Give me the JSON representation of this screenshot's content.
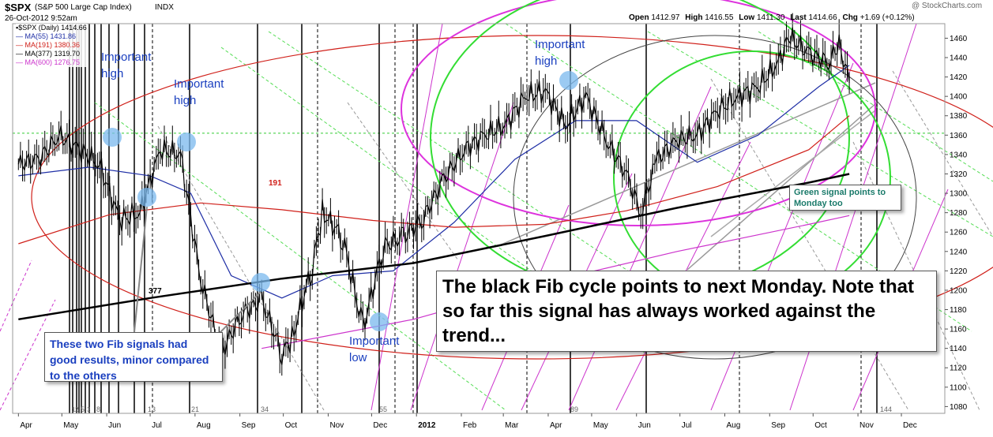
{
  "header": {
    "symbol": "$SPX",
    "name": "(S&P 500 Large Cap Index)",
    "exchange": "INDX",
    "date": "26-Oct-2012 9:52am",
    "watermark": "@ StockCharts.com",
    "ohlc": [
      {
        "label": "Open",
        "value": "1412.97"
      },
      {
        "label": "High",
        "value": "1416.55"
      },
      {
        "label": "Low",
        "value": "1411.30"
      },
      {
        "label": "Last",
        "value": "1414.66"
      },
      {
        "label": "Chg",
        "value": "+1.69 (+0.12%)"
      }
    ]
  },
  "legend": [
    {
      "text": "▪$SPX (Daily) 1414.66",
      "color": "#000000"
    },
    {
      "text": "— MA(55) 1431.86",
      "color": "#1f2fa6"
    },
    {
      "text": "— MA(191) 1380.36",
      "color": "#d0201a"
    },
    {
      "text": "— MA(377) 1319.70",
      "color": "#000000"
    },
    {
      "text": "— MA(600) 1276.75",
      "color": "#cc33cc"
    }
  ],
  "annotations": {
    "important_high_1": "Important high",
    "important_high_2": "Important high",
    "important_high_3": "Important high",
    "important_low": "Important low",
    "fib_two": "These two Fib signals had good results, minor compared to the others",
    "black_fib": "The black Fib cycle points to next Monday. Note that so far this signal has always worked against the trend...",
    "green_signal": "Green signal points to Monday too",
    "ma_191_label": "191",
    "ma_377_label": "377"
  },
  "cycle_numbers": [
    "5",
    "8",
    "13",
    "21",
    "34",
    "55",
    "89",
    "144"
  ],
  "cycle_numbers_small": [
    "1",
    "2",
    "3"
  ],
  "chart_data": {
    "type": "line",
    "title": "$SPX (S&P 500 Large Cap Index) INDX",
    "x_tick_labels": [
      "Apr",
      "May",
      "Jun",
      "Jul",
      "Aug",
      "Sep",
      "Oct",
      "Nov",
      "Dec",
      "2012",
      "Feb",
      "Mar",
      "Apr",
      "May",
      "Jun",
      "Jul",
      "Aug",
      "Sep",
      "Oct",
      "Nov",
      "Dec"
    ],
    "y_ticks": [
      1080,
      1100,
      1120,
      1140,
      1160,
      1180,
      1200,
      1220,
      1240,
      1260,
      1280,
      1300,
      1320,
      1340,
      1360,
      1380,
      1400,
      1420,
      1440,
      1460
    ],
    "ylim": [
      1073,
      1475
    ],
    "grid": false,
    "price_series": {
      "name": "$SPX (Daily)",
      "x": [
        "2011-04-01",
        "2011-04-15",
        "2011-04-29",
        "2011-05-13",
        "2011-05-27",
        "2011-06-10",
        "2011-06-24",
        "2011-07-08",
        "2011-07-22",
        "2011-08-05",
        "2011-08-19",
        "2011-09-02",
        "2011-09-16",
        "2011-09-30",
        "2011-10-07",
        "2011-10-21",
        "2011-10-28",
        "2011-11-11",
        "2011-11-25",
        "2011-12-09",
        "2011-12-23",
        "2012-01-06",
        "2012-01-20",
        "2012-02-03",
        "2012-02-17",
        "2012-03-02",
        "2012-03-16",
        "2012-03-30",
        "2012-04-13",
        "2012-04-27",
        "2012-05-11",
        "2012-05-25",
        "2012-06-04",
        "2012-06-15",
        "2012-06-29",
        "2012-07-13",
        "2012-07-27",
        "2012-08-10",
        "2012-08-24",
        "2012-09-07",
        "2012-09-14",
        "2012-09-28",
        "2012-10-12",
        "2012-10-19",
        "2012-10-26"
      ],
      "y": [
        1330,
        1335,
        1360,
        1345,
        1330,
        1272,
        1280,
        1345,
        1340,
        1210,
        1135,
        1175,
        1190,
        1135,
        1150,
        1225,
        1280,
        1255,
        1160,
        1245,
        1255,
        1275,
        1315,
        1345,
        1360,
        1370,
        1400,
        1405,
        1370,
        1400,
        1355,
        1320,
        1280,
        1335,
        1355,
        1360,
        1385,
        1400,
        1410,
        1435,
        1462,
        1445,
        1435,
        1455,
        1414
      ]
    },
    "series": [
      {
        "name": "MA(55)",
        "color": "#1f2fa6",
        "x": [
          "2011-04-01",
          "2011-05-20",
          "2011-07-01",
          "2011-07-29",
          "2011-08-26",
          "2011-09-30",
          "2011-11-04",
          "2011-12-16",
          "2012-01-27",
          "2012-03-09",
          "2012-04-20",
          "2012-06-01",
          "2012-07-13",
          "2012-08-24",
          "2012-10-05",
          "2012-10-26"
        ],
        "y": [
          1318,
          1327,
          1318,
          1300,
          1215,
          1192,
          1215,
          1220,
          1270,
          1335,
          1375,
          1375,
          1332,
          1360,
          1410,
          1432
        ]
      },
      {
        "name": "MA(191)",
        "color": "#d0201a",
        "x": [
          "2011-04-01",
          "2011-06-03",
          "2011-08-05",
          "2011-09-30",
          "2011-12-02",
          "2012-01-27",
          "2012-03-30",
          "2012-05-25",
          "2012-07-27",
          "2012-09-28",
          "2012-10-26"
        ],
        "y": [
          1248,
          1278,
          1290,
          1283,
          1272,
          1265,
          1268,
          1282,
          1307,
          1345,
          1380
        ]
      },
      {
        "name": "MA(377)",
        "color": "#000000",
        "x": [
          "2011-04-01",
          "2011-07-01",
          "2011-09-30",
          "2011-12-30",
          "2012-03-30",
          "2012-06-29",
          "2012-09-28",
          "2012-10-26"
        ],
        "y": [
          1170,
          1192,
          1212,
          1228,
          1256,
          1285,
          1311,
          1320
        ]
      },
      {
        "name": "MA(600)",
        "color": "#cc33cc",
        "x": [
          "2011-09-16",
          "2011-12-30",
          "2012-03-30",
          "2012-06-29",
          "2012-09-28",
          "2012-10-26"
        ],
        "y": [
          1140,
          1170,
          1208,
          1240,
          1268,
          1277
        ]
      }
    ]
  }
}
